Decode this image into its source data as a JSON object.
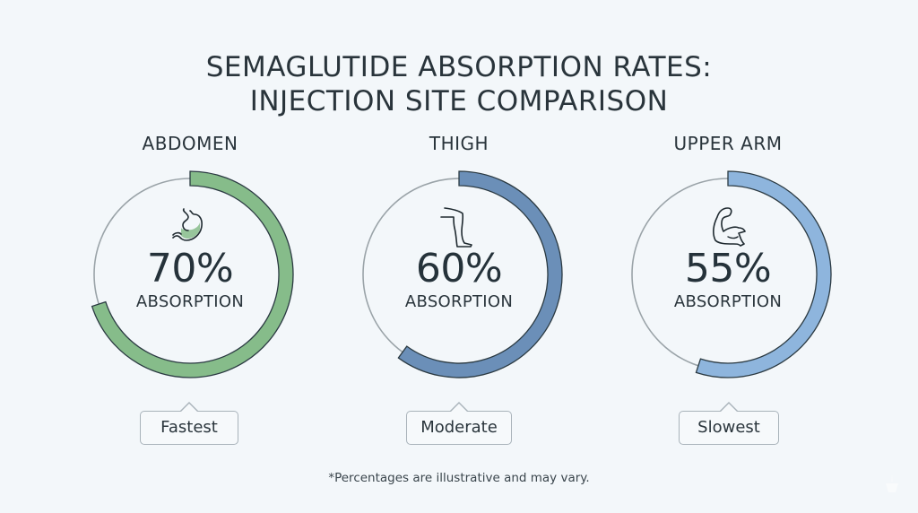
{
  "title": {
    "line1": "SEMAGLUTIDE ABSORPTION RATES:",
    "line2": "INJECTION SITE COMPARISON"
  },
  "sites": [
    {
      "label": "ABDOMEN",
      "percent_text": "70%",
      "percent": 70,
      "sublabel": "ABSORPTION",
      "badge": "Fastest",
      "icon": "stomach-icon",
      "color": "#86bc8a"
    },
    {
      "label": "THIGH",
      "percent_text": "60%",
      "percent": 60,
      "sublabel": "ABSORPTION",
      "badge": "Moderate",
      "icon": "leg-icon",
      "color": "#6b8fb8"
    },
    {
      "label": "UPPER ARM",
      "percent_text": "55%",
      "percent": 55,
      "sublabel": "ABSORPTION",
      "badge": "Slowest",
      "icon": "flexed-arm-icon",
      "color": "#8eb5dd"
    }
  ],
  "footnote": "*Percentages are illustrative and may vary.",
  "colors": {
    "background": "#f3f7fa",
    "track": "#9aa3a8",
    "outline": "#2b3a42",
    "text": "#29343b"
  },
  "chart_data": {
    "type": "radial-progress",
    "title": "SEMAGLUTIDE ABSORPTION RATES: INJECTION SITE COMPARISON",
    "categories": [
      "ABDOMEN",
      "THIGH",
      "UPPER ARM"
    ],
    "values": [
      70,
      60,
      55
    ],
    "unit": "%",
    "value_label": "ABSORPTION",
    "annotations": [
      "Fastest",
      "Moderate",
      "Slowest"
    ],
    "series_colors": [
      "#86bc8a",
      "#6b8fb8",
      "#8eb5dd"
    ],
    "range": [
      0,
      100
    ],
    "footnote": "*Percentages are illustrative and may vary."
  }
}
